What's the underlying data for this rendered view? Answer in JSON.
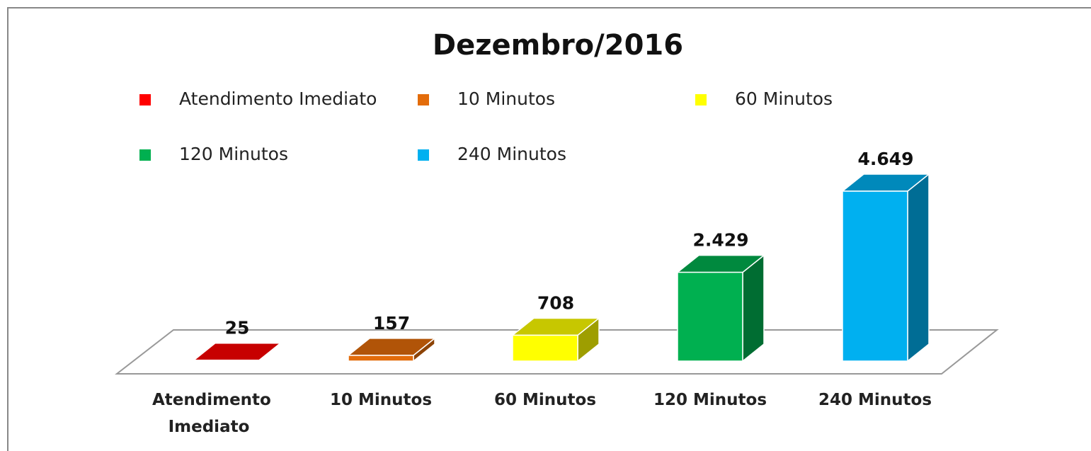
{
  "chart_data": {
    "type": "bar3d",
    "title": "Dezembro/2016",
    "categories": [
      "Atendimento Imediato",
      "10 Minutos",
      "60 Minutos",
      "120 Minutos",
      "240 Minutos"
    ],
    "values": [
      25,
      157,
      708,
      2429,
      4649
    ],
    "value_labels": [
      "25",
      "157",
      "708",
      "2.429",
      "4.649"
    ],
    "colors": [
      "#ff0000",
      "#e36c0a",
      "#ffff00",
      "#00b050",
      "#00b0f0"
    ],
    "legend": true
  }
}
